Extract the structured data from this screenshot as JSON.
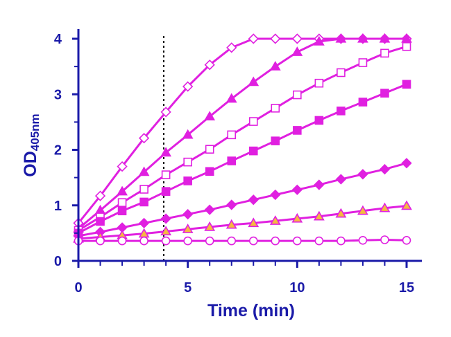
{
  "chart_data": {
    "type": "line",
    "title": "",
    "xlabel": "Time (min)",
    "ylabel": {
      "main": "OD",
      "subscript": "405nm"
    },
    "xlim": [
      0,
      15
    ],
    "ylim": [
      0,
      4
    ],
    "xticks": [
      0,
      5,
      10,
      15
    ],
    "yticks": [
      0,
      1,
      2,
      3,
      4
    ],
    "grid": false,
    "legend": "none",
    "reference_line": {
      "x": 3.9,
      "style": "dotted",
      "color": "#000000"
    },
    "colors": {
      "axis": "#1a1aa8",
      "line": "#e020e0",
      "triangle_open_fill": "#f5b940"
    },
    "series": [
      {
        "marker": "diamond-open",
        "x": [
          0,
          1,
          2,
          3,
          4,
          5,
          6,
          7,
          8,
          9,
          10,
          11,
          12,
          13,
          14,
          15
        ],
        "y": [
          0.68,
          1.17,
          1.7,
          2.21,
          2.68,
          3.14,
          3.53,
          3.84,
          4.0,
          4.0,
          4.0,
          4.0,
          4.0,
          4.0,
          4.0,
          4.0
        ]
      },
      {
        "marker": "triangle-filled",
        "x": [
          0,
          1,
          2,
          3,
          4,
          5,
          6,
          7,
          8,
          9,
          10,
          11,
          12,
          13,
          14,
          15
        ],
        "y": [
          0.58,
          0.91,
          1.25,
          1.6,
          1.95,
          2.27,
          2.6,
          2.92,
          3.22,
          3.5,
          3.76,
          3.95,
          4.0,
          4.0,
          4.0,
          4.0
        ]
      },
      {
        "marker": "square-open",
        "x": [
          0,
          1,
          2,
          3,
          4,
          5,
          6,
          7,
          8,
          9,
          10,
          11,
          12,
          13,
          14,
          15
        ],
        "y": [
          0.55,
          0.79,
          1.05,
          1.29,
          1.55,
          1.78,
          2.01,
          2.27,
          2.51,
          2.75,
          2.99,
          3.2,
          3.39,
          3.57,
          3.74,
          3.86
        ]
      },
      {
        "marker": "square-filled",
        "x": [
          0,
          1,
          2,
          3,
          4,
          5,
          6,
          7,
          8,
          9,
          10,
          11,
          12,
          13,
          14,
          15
        ],
        "y": [
          0.5,
          0.71,
          0.9,
          1.06,
          1.25,
          1.44,
          1.61,
          1.8,
          1.98,
          2.16,
          2.35,
          2.53,
          2.7,
          2.86,
          3.02,
          3.18
        ]
      },
      {
        "marker": "diamond-filled",
        "x": [
          0,
          1,
          2,
          3,
          4,
          5,
          6,
          7,
          8,
          9,
          10,
          11,
          12,
          13,
          14,
          15
        ],
        "y": [
          0.45,
          0.52,
          0.6,
          0.68,
          0.76,
          0.84,
          0.92,
          1.01,
          1.1,
          1.19,
          1.28,
          1.37,
          1.47,
          1.56,
          1.65,
          1.76
        ]
      },
      {
        "marker": "triangle-open",
        "x": [
          0,
          1,
          2,
          3,
          4,
          5,
          6,
          7,
          8,
          9,
          10,
          11,
          12,
          13,
          14,
          15
        ],
        "y": [
          0.4,
          0.43,
          0.46,
          0.49,
          0.53,
          0.57,
          0.61,
          0.65,
          0.68,
          0.72,
          0.76,
          0.8,
          0.85,
          0.9,
          0.95,
          0.99
        ]
      },
      {
        "marker": "circle-open",
        "x": [
          0,
          1,
          2,
          3,
          4,
          5,
          6,
          7,
          8,
          9,
          10,
          11,
          12,
          13,
          14,
          15
        ],
        "y": [
          0.36,
          0.36,
          0.36,
          0.36,
          0.36,
          0.36,
          0.36,
          0.36,
          0.36,
          0.36,
          0.36,
          0.36,
          0.36,
          0.37,
          0.38,
          0.37
        ]
      }
    ]
  }
}
